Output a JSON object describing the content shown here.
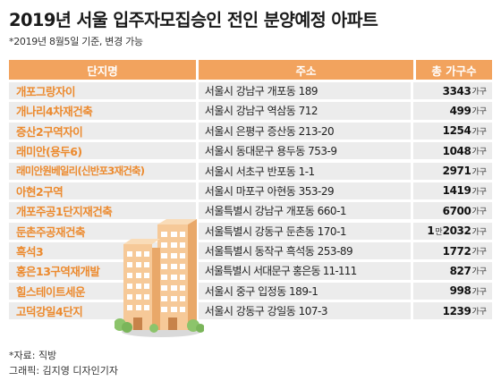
{
  "title": "2019년 서울 입주자모집승인 전인 분양예정 아파트",
  "subtitle": "*2019년 8월5일 기준, 변경 가능",
  "headers": {
    "name": "단지명",
    "address": "주소",
    "households": "총 가구수"
  },
  "rows": [
    {
      "name": "개포그랑자이",
      "address": "서울시 강남구 개포동 189",
      "count": "3343",
      "unit": "가구"
    },
    {
      "name": "개나리4차재건축",
      "address": "서울시 강남구 역삼동 712",
      "count": "499",
      "unit": "가구"
    },
    {
      "name": "증산2구역자이",
      "address": "서울시 은평구 증산동 213-20",
      "count": "1254",
      "unit": "가구"
    },
    {
      "name": "래미안(용두6)",
      "address": "서울시 동대문구 용두동 753-9",
      "count": "1048",
      "unit": "가구"
    },
    {
      "name": "래미안원베일리(신반포3재건축)",
      "address": "서울시 서초구 반포동 1-1",
      "count": "2971",
      "unit": "가구"
    },
    {
      "name": "아현2구역",
      "address": "서울시 마포구 아현동 353-29",
      "count": "1419",
      "unit": "가구"
    },
    {
      "name": "개포주공1단지재건축",
      "address": "서울특별시 강남구 개포동 660-1",
      "count": "6700",
      "unit": "가구"
    },
    {
      "name": "둔촌주공재건축",
      "address": "서울특별시 강동구 둔촌동 170-1",
      "count_prefix": "1",
      "count_prefix_unit": "만",
      "count": "2032",
      "unit": "가구"
    },
    {
      "name": "흑석3",
      "address": "서울특별시 동작구 흑석동 253-89",
      "count": "1772",
      "unit": "가구"
    },
    {
      "name": "홍은13구역재개발",
      "address": "서울특별시 서대문구 홍은동 11-111",
      "count": "827",
      "unit": "가구"
    },
    {
      "name": "힐스테이트세운",
      "address": "서울시 중구 입정동 189-1",
      "count": "998",
      "unit": "가구"
    },
    {
      "name": "고덕강일4단지",
      "address": "서울시 강동구 강일동 107-3",
      "count": "1239",
      "unit": "가구"
    }
  ],
  "source": "*자료: 직방",
  "credit": "그래픽: 김지영 디자인기자",
  "colors": {
    "accent": "#f2a35e",
    "name_text": "#ec8a2e",
    "cell_bg": "#ececec"
  },
  "illustration": "apartment-buildings-illustration"
}
